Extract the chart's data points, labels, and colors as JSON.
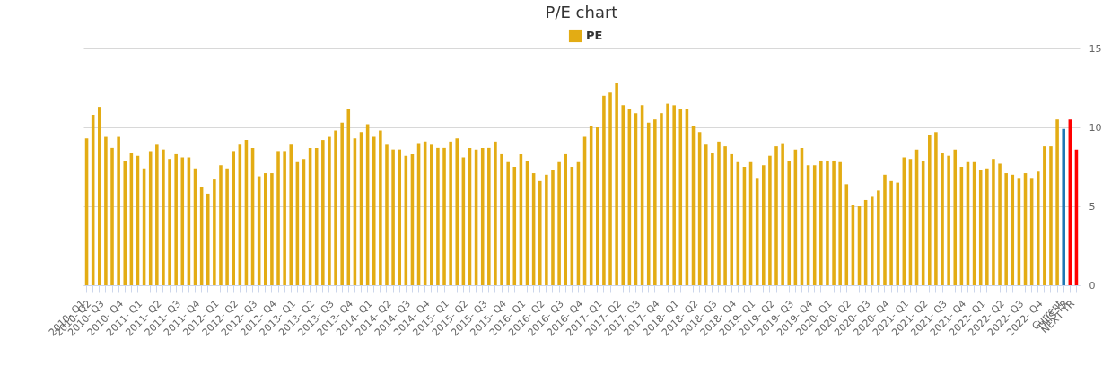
{
  "chart_data": {
    "type": "bar",
    "title": "P/E chart",
    "categories": [
      "2010- Q1",
      "2010- Q2",
      null,
      "2010- Q3",
      null,
      null,
      "2010- Q4",
      null,
      null,
      "2011- Q1",
      null,
      null,
      "2011- Q2",
      null,
      null,
      "2011- Q3",
      null,
      null,
      "2011- Q4",
      null,
      null,
      "2012- Q1",
      null,
      null,
      "2012- Q2",
      null,
      null,
      "2012- Q3",
      null,
      null,
      "2012- Q4",
      null,
      null,
      "2013- Q1",
      null,
      null,
      "2013- Q2",
      null,
      null,
      "2013- Q3",
      null,
      null,
      "2013- Q4",
      null,
      null,
      "2014- Q1",
      null,
      null,
      "2014- Q2",
      null,
      null,
      "2014- Q3",
      null,
      null,
      "2014- Q4",
      null,
      null,
      "2015- Q1",
      null,
      null,
      "2015- Q2",
      null,
      null,
      "2015- Q3",
      null,
      null,
      "2015- Q4",
      null,
      null,
      "2016- Q1",
      null,
      null,
      "2016- Q2",
      null,
      null,
      "2016- Q3",
      null,
      null,
      "2016- Q4",
      null,
      null,
      "2017- Q1",
      null,
      null,
      "2017- Q2",
      null,
      null,
      "2017- Q3",
      null,
      null,
      "2017- Q4",
      null,
      null,
      "2018- Q1",
      null,
      null,
      "2018- Q2",
      null,
      null,
      "2018- Q3",
      null,
      null,
      "2018- Q4",
      null,
      null,
      "2019- Q1",
      null,
      null,
      "2019- Q2",
      null,
      null,
      "2019- Q3",
      null,
      null,
      "2019- Q4",
      null,
      null,
      "2020- Q1",
      null,
      null,
      "2020- Q2",
      null,
      null,
      "2020- Q3",
      null,
      null,
      "2020- Q4",
      null,
      null,
      "2021- Q1",
      null,
      null,
      "2021- Q2",
      null,
      null,
      "2021- Q3",
      null,
      null,
      "2021- Q4",
      null,
      null,
      "2022- Q1",
      null,
      null,
      "2022- Q2",
      null,
      null,
      "2022- Q3",
      null,
      null,
      "2022- Q4",
      null,
      null,
      "Current",
      "THIS YR",
      "NEXT YR"
    ],
    "series": [
      {
        "name": "PE",
        "color": "#e3ac14",
        "values": [
          9.3,
          10.8,
          11.3,
          9.4,
          8.7,
          9.4,
          7.9,
          8.4,
          8.2,
          7.4,
          8.5,
          8.9,
          8.6,
          8.0,
          8.3,
          8.1,
          8.1,
          7.4,
          6.2,
          5.8,
          6.7,
          7.6,
          7.4,
          8.5,
          8.9,
          9.2,
          8.7,
          6.9,
          7.1,
          7.1,
          8.5,
          8.5,
          8.9,
          7.8,
          8.0,
          8.7,
          8.7,
          9.2,
          9.4,
          9.8,
          10.3,
          11.2,
          9.3,
          9.7,
          10.2,
          9.4,
          9.8,
          8.9,
          8.6,
          8.6,
          8.2,
          8.3,
          9.0,
          9.1,
          8.9,
          8.7,
          8.7,
          9.1,
          9.3,
          8.1,
          8.7,
          8.6,
          8.7,
          8.7,
          9.1,
          8.3,
          7.8,
          7.5,
          8.3,
          7.9,
          7.1,
          6.6,
          7.0,
          7.3,
          7.8,
          8.3,
          7.5,
          7.8,
          9.4,
          10.1,
          10.0,
          12.0,
          12.2,
          12.8,
          11.4,
          11.2,
          10.9,
          11.4,
          10.3,
          10.5,
          10.9,
          11.5,
          11.4,
          11.2,
          11.2,
          10.1,
          9.7,
          8.9,
          8.4,
          9.1,
          8.8,
          8.3,
          7.8,
          7.5,
          7.8,
          6.8,
          7.6,
          8.2,
          8.8,
          9.0,
          7.9,
          8.6,
          8.7,
          7.6,
          7.6,
          7.9,
          7.9,
          7.9,
          7.8,
          6.4,
          5.1,
          5.0,
          5.4,
          5.6,
          6.0,
          7.0,
          6.6,
          6.5,
          8.1,
          8.0,
          8.6,
          7.9,
          9.5,
          9.7,
          8.4,
          8.2,
          8.6,
          7.5,
          7.8,
          7.8,
          7.3,
          7.4,
          8.0,
          7.7,
          7.1,
          7.0,
          6.8,
          7.1,
          6.8,
          7.2,
          8.8,
          8.8,
          10.5,
          null,
          null,
          null
        ]
      },
      {
        "color": "#1f77b4",
        "x": [
          "Current"
        ],
        "values": [
          9.9
        ]
      },
      {
        "color": "#ff0000",
        "x": [
          "THIS YR",
          "NEXT YR"
        ],
        "values": [
          10.5,
          8.6
        ]
      }
    ],
    "ylim": [
      0,
      15
    ],
    "yticks": [
      0,
      5,
      10,
      15
    ],
    "grid": true,
    "legend": "top"
  }
}
